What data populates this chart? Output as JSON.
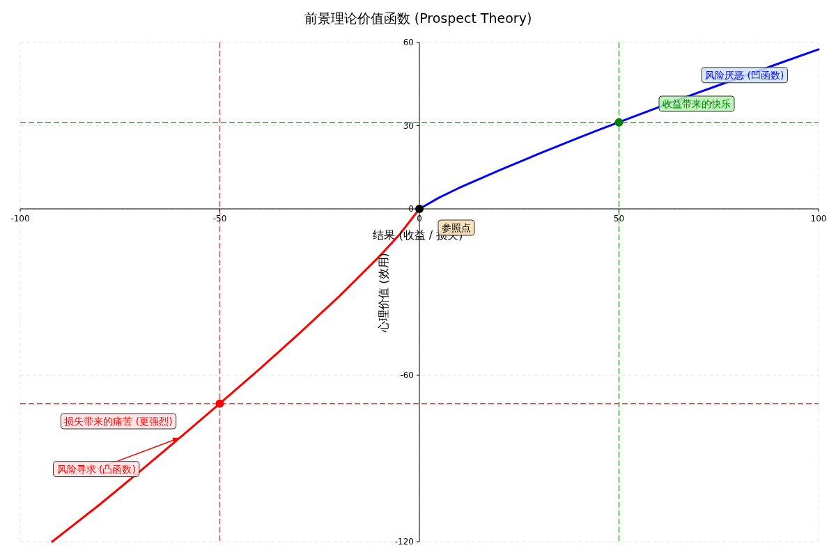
{
  "chart_data": {
    "type": "line",
    "title": "前景理论价值函数 (Prospect Theory)",
    "xlabel": "结果 (收益 / 损失)",
    "ylabel": "心理价值 (效用)",
    "xlim": [
      -100,
      100
    ],
    "ylim": [
      -120,
      60
    ],
    "xticks": [
      -100,
      -50,
      0,
      50,
      100
    ],
    "yticks": [
      -120,
      -60,
      0,
      30,
      60
    ],
    "grid": true,
    "series": [
      {
        "color": "#0000ff",
        "x": [
          0,
          5,
          10,
          20,
          30,
          40,
          45,
          55,
          60,
          70,
          90,
          100
        ],
        "values": [
          0,
          4.1,
          7.6,
          13.9,
          19.9,
          25.7,
          28.5,
          34.0,
          36.7,
          42.0,
          52.4,
          57.5
        ]
      },
      {
        "color": "#ff0000",
        "x": [
          -92,
          -80,
          -70,
          -60,
          -50,
          -40,
          -30,
          -20,
          -10,
          -5,
          0
        ],
        "values": [
          -120,
          -106.5,
          -94.6,
          -82.5,
          -70.2,
          -57.7,
          -44.8,
          -31.4,
          -17.1,
          -9.3,
          0
        ]
      },
      {
        "type": "scatter",
        "marker": "circle",
        "x": [
          0,
          50,
          -50
        ],
        "values": [
          0,
          31.2,
          -70.2
        ],
        "colors": [
          "#000000",
          "#008000",
          "#ff0000"
        ]
      }
    ],
    "ref_lines": [
      {
        "axis": "x",
        "value": -50,
        "color": "#ff0000",
        "line_style": "dashed"
      },
      {
        "axis": "x",
        "value": 50,
        "color": "#008000",
        "line_style": "dashed"
      },
      {
        "axis": "y",
        "value": 31.2,
        "color": "#008000",
        "line_style": "dashed"
      },
      {
        "axis": "y",
        "value": -70.2,
        "color": "#ff0000",
        "line_style": "dashed"
      }
    ],
    "annotations": [
      {
        "text": "参照点",
        "x": 0,
        "y": 0
      },
      {
        "text": "风险厌恶 (凹函数)",
        "x": 60,
        "y": 36.7
      },
      "收益带来的快乐",
      "损失带来的痛苦 (更强烈)",
      {
        "text": "风险寻求 (凸函数)",
        "x": -60,
        "y": -82.5
      }
    ]
  }
}
